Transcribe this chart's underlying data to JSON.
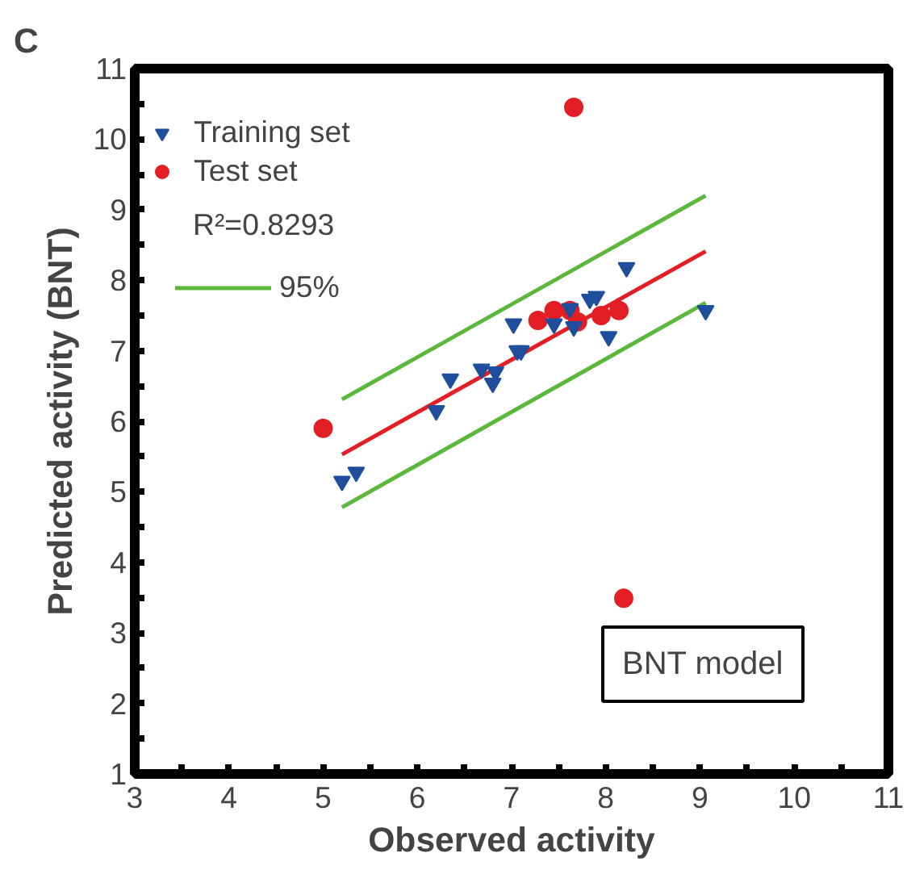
{
  "chart_data": {
    "type": "scatter",
    "title": "C",
    "xlabel": "Observed activity",
    "ylabel": "Predicted activity (BNT)",
    "xlim": [
      3,
      11
    ],
    "ylim": [
      1,
      11
    ],
    "xticks": [
      3,
      {
        "value": 3.5,
        "label": null
      },
      4,
      {
        "value": 4.5,
        "label": null
      },
      5,
      {
        "value": 5.5,
        "label": null
      },
      6,
      {
        "value": 6.5,
        "label": null
      },
      7,
      {
        "value": 7.5,
        "label": null
      },
      8,
      {
        "value": 8.5,
        "label": null
      },
      9,
      {
        "value": 9.5,
        "label": null
      },
      10,
      {
        "value": 10.5,
        "label": null
      },
      11
    ],
    "yticks": [
      1,
      {
        "value": 1.5,
        "label": null
      },
      2,
      {
        "value": 2.5,
        "label": null
      },
      3,
      {
        "value": 3.5,
        "label": null
      },
      4,
      {
        "value": 4.5,
        "label": null
      },
      5,
      {
        "value": 5.5,
        "label": null
      },
      6,
      {
        "value": 6.5,
        "label": null
      },
      7,
      {
        "value": 7.5,
        "label": null
      },
      8,
      {
        "value": 8.5,
        "label": null
      },
      9,
      {
        "value": 9.5,
        "label": null
      },
      10,
      {
        "value": 10.5,
        "label": null
      },
      11
    ],
    "grid": false,
    "legend": "top left",
    "series": [
      {
        "name": "Training set",
        "type": "scatter",
        "marker": "triangle",
        "color": "#1f4e9c",
        "x": [
          5.2,
          5.35,
          6.2,
          6.35,
          6.68,
          6.8,
          6.83,
          7.02,
          7.06,
          7.1,
          7.45,
          7.66,
          7.62,
          7.83,
          7.9,
          8.03,
          8.22,
          9.06
        ],
        "values": [
          5.15,
          5.28,
          6.15,
          6.6,
          6.74,
          6.54,
          6.7,
          7.38,
          7.0,
          7.0,
          7.38,
          7.34,
          7.6,
          7.73,
          7.77,
          7.2,
          8.18,
          7.57
        ]
      },
      {
        "name": "Test set",
        "type": "scatter",
        "marker": "circle",
        "color": "#e31e24",
        "x": [
          5.0,
          7.28,
          7.45,
          7.62,
          7.7,
          7.95,
          8.14,
          7.66,
          8.19
        ],
        "values": [
          5.9,
          7.43,
          7.57,
          7.57,
          7.41,
          7.5,
          7.57,
          10.45,
          3.49
        ]
      },
      {
        "type": "line",
        "color": "#e31e24",
        "x": [
          5.2,
          9.06
        ],
        "values": [
          5.53,
          8.41
        ]
      },
      {
        "name": "95%",
        "type": "line",
        "color": "#5cb83c",
        "x": [
          5.2,
          9.06
        ],
        "values": [
          6.31,
          9.2
        ]
      },
      {
        "type": "line",
        "color": "#5cb83c",
        "x": [
          5.2,
          9.06
        ],
        "values": [
          4.78,
          7.68
        ]
      }
    ],
    "annotations": [
      "R²=0.8293",
      "BNT model"
    ]
  }
}
